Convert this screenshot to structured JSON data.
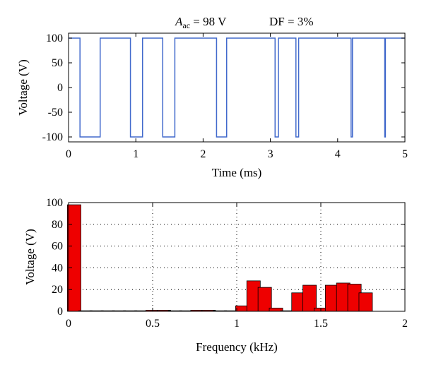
{
  "header": {
    "amp_symbol": "A",
    "amp_subscript": "ac",
    "amp_value": " = 98 V",
    "df_text": "DF = 3%"
  },
  "chart_data": [
    {
      "type": "line",
      "title": "",
      "xlabel": "Time (ms)",
      "ylabel": "Voltage (V)",
      "xlim": [
        0,
        5
      ],
      "ylim": [
        -110,
        110
      ],
      "xticks": [
        0,
        1,
        2,
        3,
        4,
        5
      ],
      "yticks": [
        -100,
        -50,
        0,
        50,
        100
      ],
      "grid": false,
      "line_color": "#4169cc",
      "series": [
        {
          "x": [
            0,
            0.17,
            0.17,
            0.47,
            0.47,
            0.92,
            0.92,
            1.1,
            1.1,
            1.4,
            1.4,
            1.58,
            1.58,
            2.2,
            2.2,
            2.35,
            2.35,
            3.07,
            3.07,
            3.12,
            3.12,
            3.38,
            3.38,
            3.42,
            3.42,
            4.2,
            4.2,
            4.22,
            4.22,
            4.7,
            4.7,
            4.71,
            4.71,
            5.0
          ],
          "y": [
            100,
            100,
            -100,
            -100,
            100,
            100,
            -100,
            -100,
            100,
            100,
            -100,
            -100,
            100,
            100,
            -100,
            -100,
            100,
            100,
            -100,
            -100,
            100,
            100,
            -100,
            -100,
            100,
            100,
            -100,
            -100,
            100,
            100,
            -100,
            -100,
            100,
            100
          ]
        }
      ]
    },
    {
      "type": "bar",
      "title": "",
      "xlabel": "Frequency (kHz)",
      "ylabel": "Voltage (V)",
      "xlim": [
        0,
        2
      ],
      "ylim": [
        0,
        100
      ],
      "xticks": [
        0,
        0.5,
        1,
        1.5,
        2
      ],
      "xtick_labels": [
        "0",
        "0.5",
        "1",
        "1.5",
        "2"
      ],
      "yticks": [
        0,
        20,
        40,
        60,
        80,
        100
      ],
      "grid": true,
      "bar_color": "#ee0000",
      "bar_width": 0.08,
      "x": [
        0.0333,
        0.1,
        0.1667,
        0.2333,
        0.3,
        0.3667,
        0.4333,
        0.5,
        0.5667,
        0.6333,
        0.7,
        0.7667,
        0.8333,
        0.9,
        0.9667,
        1.0333,
        1.1,
        1.1667,
        1.2333,
        1.3,
        1.3667,
        1.4333,
        1.5,
        1.5667,
        1.6333,
        1.7,
        1.7667,
        1.8333,
        1.9,
        1.9667
      ],
      "values": [
        98,
        0.5,
        0.5,
        0.5,
        0.5,
        0.5,
        0.5,
        1,
        1,
        0.5,
        0.5,
        1,
        1,
        0.5,
        0.5,
        5,
        28,
        22,
        3,
        0.5,
        17,
        24,
        3,
        24,
        26,
        25,
        17,
        0,
        0,
        0
      ]
    }
  ]
}
